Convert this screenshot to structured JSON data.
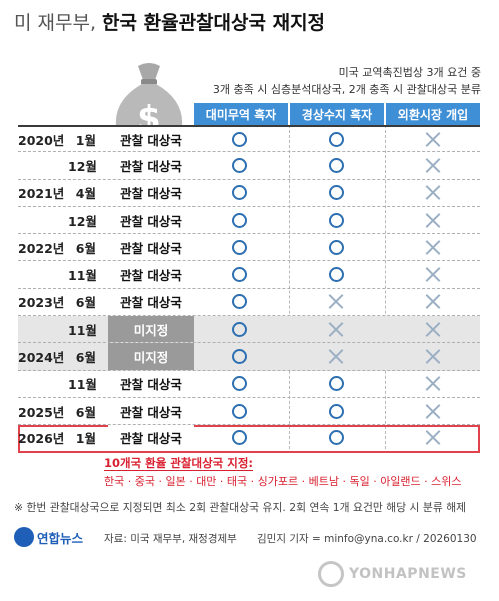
{
  "title": {
    "prefix": "미 재무부,",
    "main": "한국 환율관찰대상국 재지정"
  },
  "criteria": {
    "line1": "미국 교역촉진법상 3개 요건 중",
    "line2": "3개 충족 시 심층분석대상국, 2개 충족 시 관찰대상국 분류"
  },
  "columns": [
    "대미무역 흑자",
    "경상수지 흑자",
    "외환시장 개입"
  ],
  "rows": [
    {
      "year": "2020년",
      "month": "1월",
      "status": "관찰 대상국",
      "c1": "O",
      "c2": "O",
      "c3": "X"
    },
    {
      "year": "",
      "month": "12월",
      "status": "관찰 대상국",
      "c1": "O",
      "c2": "O",
      "c3": "X"
    },
    {
      "year": "2021년",
      "month": "4월",
      "status": "관찰 대상국",
      "c1": "O",
      "c2": "O",
      "c3": "X"
    },
    {
      "year": "",
      "month": "12월",
      "status": "관찰 대상국",
      "c1": "O",
      "c2": "O",
      "c3": "X"
    },
    {
      "year": "2022년",
      "month": "6월",
      "status": "관찰 대상국",
      "c1": "O",
      "c2": "O",
      "c3": "X"
    },
    {
      "year": "",
      "month": "11월",
      "status": "관찰 대상국",
      "c1": "O",
      "c2": "O",
      "c3": "X"
    },
    {
      "year": "2023년",
      "month": "6월",
      "status": "관찰 대상국",
      "c1": "O",
      "c2": "X",
      "c3": "X"
    },
    {
      "year": "",
      "month": "11월",
      "status": "미지정",
      "c1": "O",
      "c2": "X",
      "c3": "X"
    },
    {
      "year": "2024년",
      "month": "6월",
      "status": "미지정",
      "c1": "O",
      "c2": "X",
      "c3": "X"
    },
    {
      "year": "",
      "month": "11월",
      "status": "관찰 대상국",
      "c1": "O",
      "c2": "O",
      "c3": "X"
    },
    {
      "year": "2025년",
      "month": "6월",
      "status": "관찰 대상국",
      "c1": "O",
      "c2": "O",
      "c3": "X"
    },
    {
      "year": "2026년",
      "month": "1월",
      "status": "관찰 대상국",
      "c1": "O",
      "c2": "O",
      "c3": "X"
    }
  ],
  "designated": {
    "title": "10개국 환율 관찰대상국 지정:",
    "countries": "한국 · 중국 · 일본 · 대만 · 태국 · 싱가포르 · 베트남 · 독일 · 아일랜드 · 스위스"
  },
  "footnote": "※ 한번 관찰대상국으로 지정되면 최소 2회 관찰대상국 유지. 2회 연속 1개 요건만 해당 시 분류 해제",
  "logo": "연합뉴스",
  "source": "자료: 미국 재무부, 재정경제부",
  "reporter": "김민지 기자 = minfo@yna.co.kr / 20260130",
  "watermark": "YONHAPNEWS",
  "colors": {
    "header_blue": "#3f8fd6",
    "circle_blue": "#2d6fb0",
    "cross_gray": "#9aaec4",
    "highlight_red": "#e0414b",
    "undesignated_gray": "#9a9a9a"
  }
}
